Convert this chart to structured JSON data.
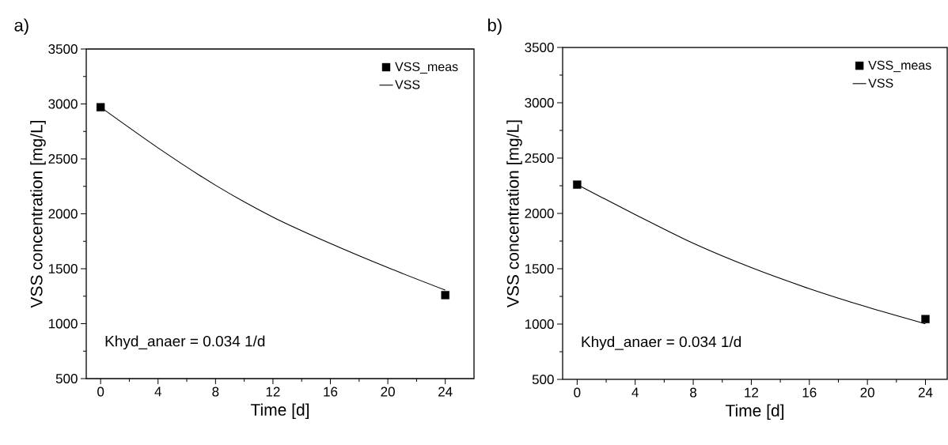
{
  "chart_data": [
    {
      "type": "line",
      "title": "a)",
      "xlabel": "Time [d]",
      "ylabel": "VSS concentration [mg/L]",
      "annotations": [
        "Khyd_anaer = 0.034 1/d"
      ],
      "legend": "top right",
      "xlim": [
        -1,
        26
      ],
      "ylim": [
        500,
        3500
      ],
      "xticks": [
        0,
        4,
        8,
        12,
        16,
        20,
        24
      ],
      "yticks": [
        500,
        1000,
        1500,
        2000,
        2500,
        3000,
        3500
      ],
      "series": [
        {
          "name": "VSS_meas",
          "type": "scatter",
          "marker": "square",
          "color": "#000000",
          "x": [
            0,
            24
          ],
          "values": [
            2970,
            1260
          ]
        },
        {
          "name": "VSS",
          "type": "line",
          "marker": "none",
          "color": "#000000",
          "x": [
            0,
            4,
            8,
            12,
            16,
            20,
            24
          ],
          "values": [
            2970,
            2600,
            2260,
            1970,
            1730,
            1510,
            1305
          ]
        }
      ]
    },
    {
      "type": "line",
      "title": "b)",
      "xlabel": "Time [d]",
      "ylabel": "VSS concentration [mg/L]",
      "annotations": [
        "Khyd_anaer = 0.034 1/d"
      ],
      "legend": "top right",
      "xlim": [
        -1,
        25.5
      ],
      "ylim": [
        500,
        3500
      ],
      "xticks": [
        0,
        4,
        8,
        12,
        16,
        20,
        24
      ],
      "yticks": [
        500,
        1000,
        1500,
        2000,
        2500,
        3000,
        3500
      ],
      "series": [
        {
          "name": "VSS_meas",
          "type": "scatter",
          "marker": "square",
          "color": "#000000",
          "x": [
            0,
            24
          ],
          "values": [
            2260,
            1045
          ]
        },
        {
          "name": "VSS",
          "type": "line",
          "marker": "none",
          "color": "#000000",
          "x": [
            0,
            4,
            8,
            12,
            16,
            20,
            24
          ],
          "values": [
            2260,
            1990,
            1730,
            1510,
            1320,
            1153,
            1002
          ]
        }
      ]
    }
  ]
}
